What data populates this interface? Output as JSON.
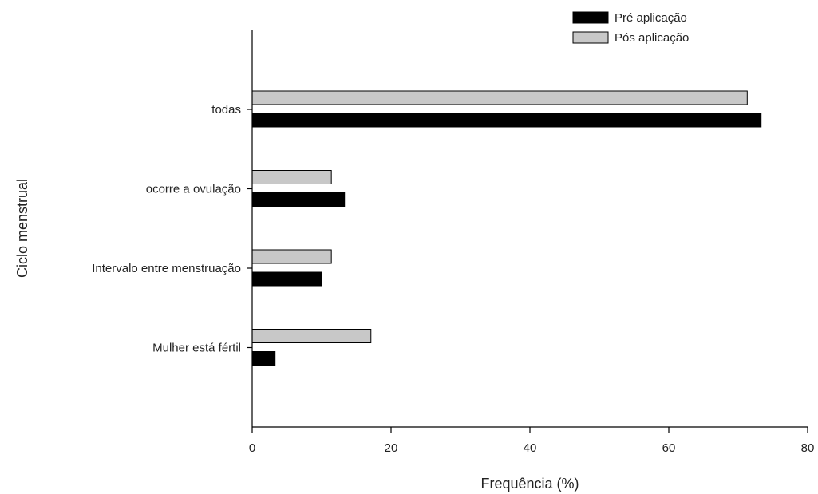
{
  "chart_data": {
    "type": "bar",
    "orientation": "horizontal",
    "categories": [
      "todas",
      "ocorre a ovulação",
      "Intervalo entre menstruação",
      "Mulher está fértil"
    ],
    "series": [
      {
        "name": "Pré aplicação",
        "values": [
          73.3,
          13.3,
          10.0,
          3.3
        ],
        "color": "#000000"
      },
      {
        "name": "Pós aplicação",
        "values": [
          71.3,
          11.4,
          11.4,
          17.1
        ],
        "color": "#c8c8c8"
      }
    ],
    "x_ticks": [
      0,
      20,
      40,
      60,
      80
    ],
    "xlim": [
      0,
      80
    ],
    "xlabel": "Frequência (%)",
    "ylabel": "Ciclo menstrual",
    "legend_position": "top-right",
    "grid": false
  }
}
